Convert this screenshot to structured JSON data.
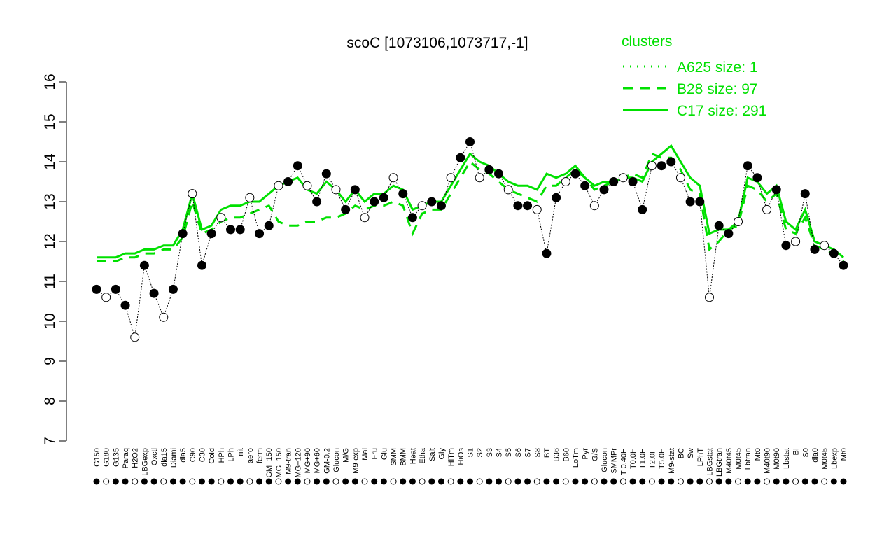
{
  "chart_data": {
    "type": "scatter-line",
    "title": "scoC [1073106,1073717,-1]",
    "legend_title": "clusters",
    "categories": [
      "G150",
      "G180",
      "G135",
      "Paraq",
      "H2O2",
      "LBGexp",
      "Oxctl",
      "dia15",
      "Diami",
      "dia5",
      "C90",
      "C30",
      "Cold",
      "HPh",
      "LPh",
      "nit",
      "aero",
      "ferm",
      "GM+150",
      "MG+150",
      "M9-tran",
      "MG+120",
      "MG+90",
      "MG+60",
      "GM-0.2",
      "Glucon",
      "M/G",
      "M9-exp",
      "Mal",
      "Fru",
      "Glu",
      "SMM",
      "BMM",
      "Heat",
      "Etha",
      "Salt",
      "Gly",
      "HiTm",
      "HiOs",
      "S1",
      "S2",
      "S3",
      "S4",
      "S5",
      "S6",
      "S7",
      "S8",
      "BT",
      "B36",
      "B60",
      "LoTm",
      "Pyr",
      "G/S",
      "Glucon",
      "SMMPr",
      "T-0.40H",
      "T0.0H",
      "T1.0H",
      "T2.0H",
      "T5.0H",
      "M9-stat",
      "BC",
      "Sw",
      "LPhT",
      "LBGstat",
      "LBGtran",
      "M40t45",
      "M0t45",
      "Lbtran",
      "Mt0",
      "M40t90",
      "M0t90",
      "Lbstat",
      "BI",
      "S0",
      "dia0",
      "M0t45",
      "Lbexp",
      "Mt0"
    ],
    "values": [
      10.8,
      10.6,
      10.8,
      10.4,
      9.6,
      11.4,
      10.7,
      10.1,
      10.8,
      12.2,
      13.2,
      11.4,
      12.2,
      12.6,
      12.3,
      12.3,
      13.1,
      12.2,
      12.4,
      13.4,
      13.5,
      13.9,
      13.4,
      13.0,
      13.7,
      13.3,
      12.8,
      13.3,
      12.6,
      13.0,
      13.1,
      13.6,
      13.2,
      12.6,
      12.9,
      13.0,
      12.9,
      13.6,
      14.1,
      14.5,
      13.6,
      13.8,
      13.7,
      13.3,
      12.9,
      12.9,
      12.8,
      11.7,
      13.1,
      13.5,
      13.7,
      13.4,
      12.9,
      13.3,
      13.5,
      13.6,
      13.5,
      12.8,
      13.9,
      13.9,
      14.0,
      13.6,
      13.0,
      13.0,
      10.6,
      12.4,
      12.2,
      12.5,
      13.9,
      13.6,
      12.8,
      13.3,
      11.9,
      12.0,
      13.2,
      11.8,
      11.9,
      11.7,
      11.4
    ],
    "series": [
      {
        "name": "A625 size: 1",
        "color": "#00e000",
        "dash": "dotted"
      },
      {
        "name": "B28 size: 97",
        "color": "#00e000",
        "dash": "dashed",
        "values": [
          11.5,
          11.5,
          11.5,
          11.6,
          11.6,
          11.7,
          11.7,
          11.8,
          11.8,
          12.1,
          13.0,
          12.2,
          12.3,
          12.5,
          12.6,
          12.6,
          12.7,
          12.8,
          12.9,
          12.5,
          12.4,
          12.4,
          12.5,
          12.5,
          12.6,
          12.6,
          12.7,
          12.9,
          12.8,
          12.9,
          12.9,
          13.0,
          12.9,
          12.2,
          12.7,
          12.8,
          12.8,
          13.2,
          13.6,
          14.0,
          13.8,
          13.7,
          13.5,
          13.3,
          13.2,
          13.1,
          13.0,
          13.4,
          13.4,
          13.6,
          13.8,
          13.6,
          13.3,
          13.4,
          13.5,
          13.6,
          13.7,
          13.6,
          14.2,
          14.1,
          14.1,
          13.8,
          13.3,
          13.2,
          11.8,
          12.0,
          12.3,
          12.4,
          13.4,
          13.3,
          13.0,
          13.2,
          12.3,
          12.2,
          12.6,
          11.9,
          11.8,
          11.7,
          11.5
        ]
      },
      {
        "name": "C17 size: 291",
        "color": "#00e000",
        "dash": "solid",
        "values": [
          11.6,
          11.6,
          11.6,
          11.7,
          11.7,
          11.8,
          11.8,
          11.9,
          11.9,
          12.3,
          13.2,
          12.3,
          12.4,
          12.8,
          12.9,
          12.9,
          13.0,
          13.0,
          13.2,
          13.4,
          13.5,
          13.6,
          13.3,
          13.2,
          13.5,
          13.3,
          13.0,
          13.3,
          13.0,
          13.2,
          13.2,
          13.4,
          13.3,
          12.8,
          12.9,
          13.0,
          13.0,
          13.4,
          13.8,
          14.2,
          14.0,
          13.9,
          13.7,
          13.5,
          13.4,
          13.4,
          13.3,
          13.7,
          13.6,
          13.7,
          13.9,
          13.6,
          13.4,
          13.5,
          13.5,
          13.6,
          13.6,
          13.5,
          14.0,
          14.2,
          14.4,
          14.0,
          13.6,
          13.4,
          12.2,
          12.3,
          12.3,
          12.5,
          13.6,
          13.5,
          13.2,
          13.4,
          12.5,
          12.3,
          12.8,
          12.0,
          11.9,
          11.8,
          11.6
        ]
      }
    ],
    "ylim": [
      7,
      16
    ],
    "yticks": [
      7,
      8,
      9,
      10,
      11,
      12,
      13,
      14,
      15,
      16
    ]
  }
}
